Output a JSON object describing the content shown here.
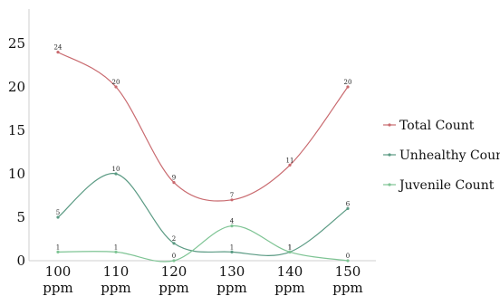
{
  "chart_data": {
    "type": "line",
    "smooth": true,
    "categories": [
      "100\nppm",
      "110\nppm",
      "120\nppm",
      "130\nppm",
      "140\nppm",
      "150\nppm"
    ],
    "ylim": [
      0,
      29
    ],
    "yticks": [
      0,
      5,
      10,
      15,
      20,
      25
    ],
    "grid": false,
    "legend_position": "right",
    "series": [
      {
        "name": "Total Count",
        "color": "#c96a6f",
        "values": [
          24,
          20,
          9,
          7,
          11,
          20
        ]
      },
      {
        "name": "Unhealthy Count",
        "color": "#5a9a83",
        "values": [
          5,
          10,
          2,
          1,
          1,
          6
        ]
      },
      {
        "name": "Juvenile Count",
        "color": "#7ec494",
        "values": [
          1,
          1,
          0,
          4,
          1,
          0
        ]
      }
    ]
  }
}
